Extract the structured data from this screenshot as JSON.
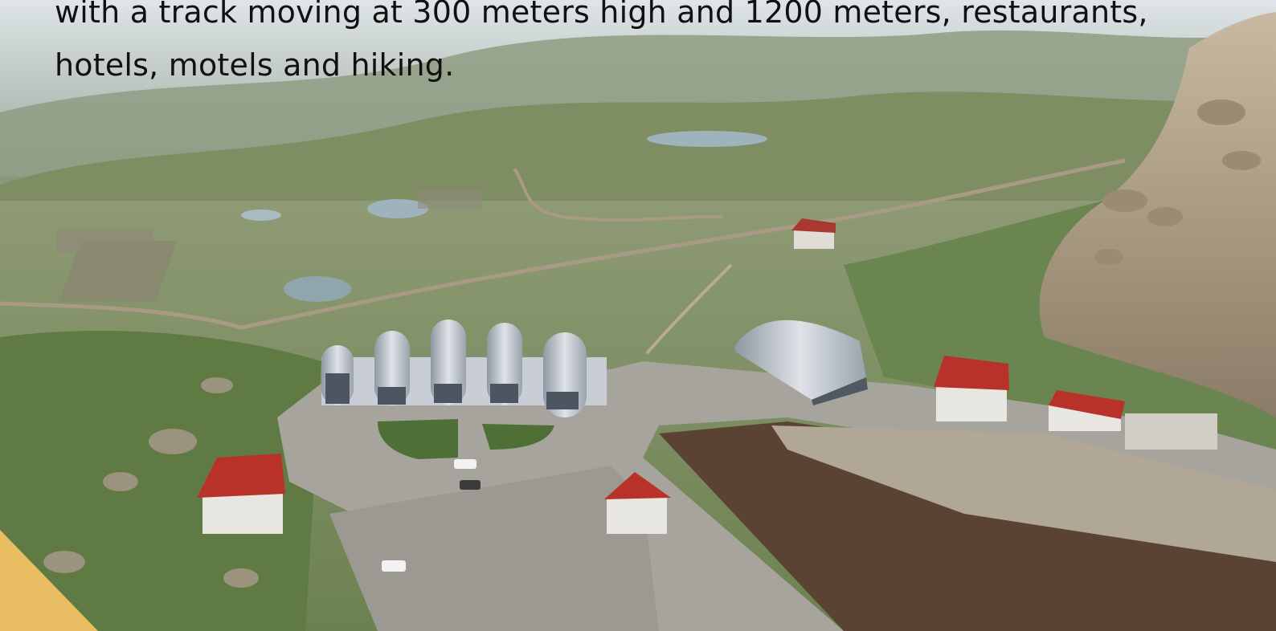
{
  "caption": {
    "line1": "with a track moving at 300 meters high and 1200 meters, restaurants,",
    "line2": "hotels, motels and hiking."
  },
  "colors": {
    "sky_haze": "#c9d2d6",
    "valley_green": "#7d8f5e",
    "mountain_rock": "#a89b86",
    "roof_red": "#b8322a",
    "building_white": "#e8e6e0",
    "dome_silver": "#b9c0c9",
    "plaza_gray": "#a7a49e",
    "accent_yellow": "#e9be62"
  }
}
